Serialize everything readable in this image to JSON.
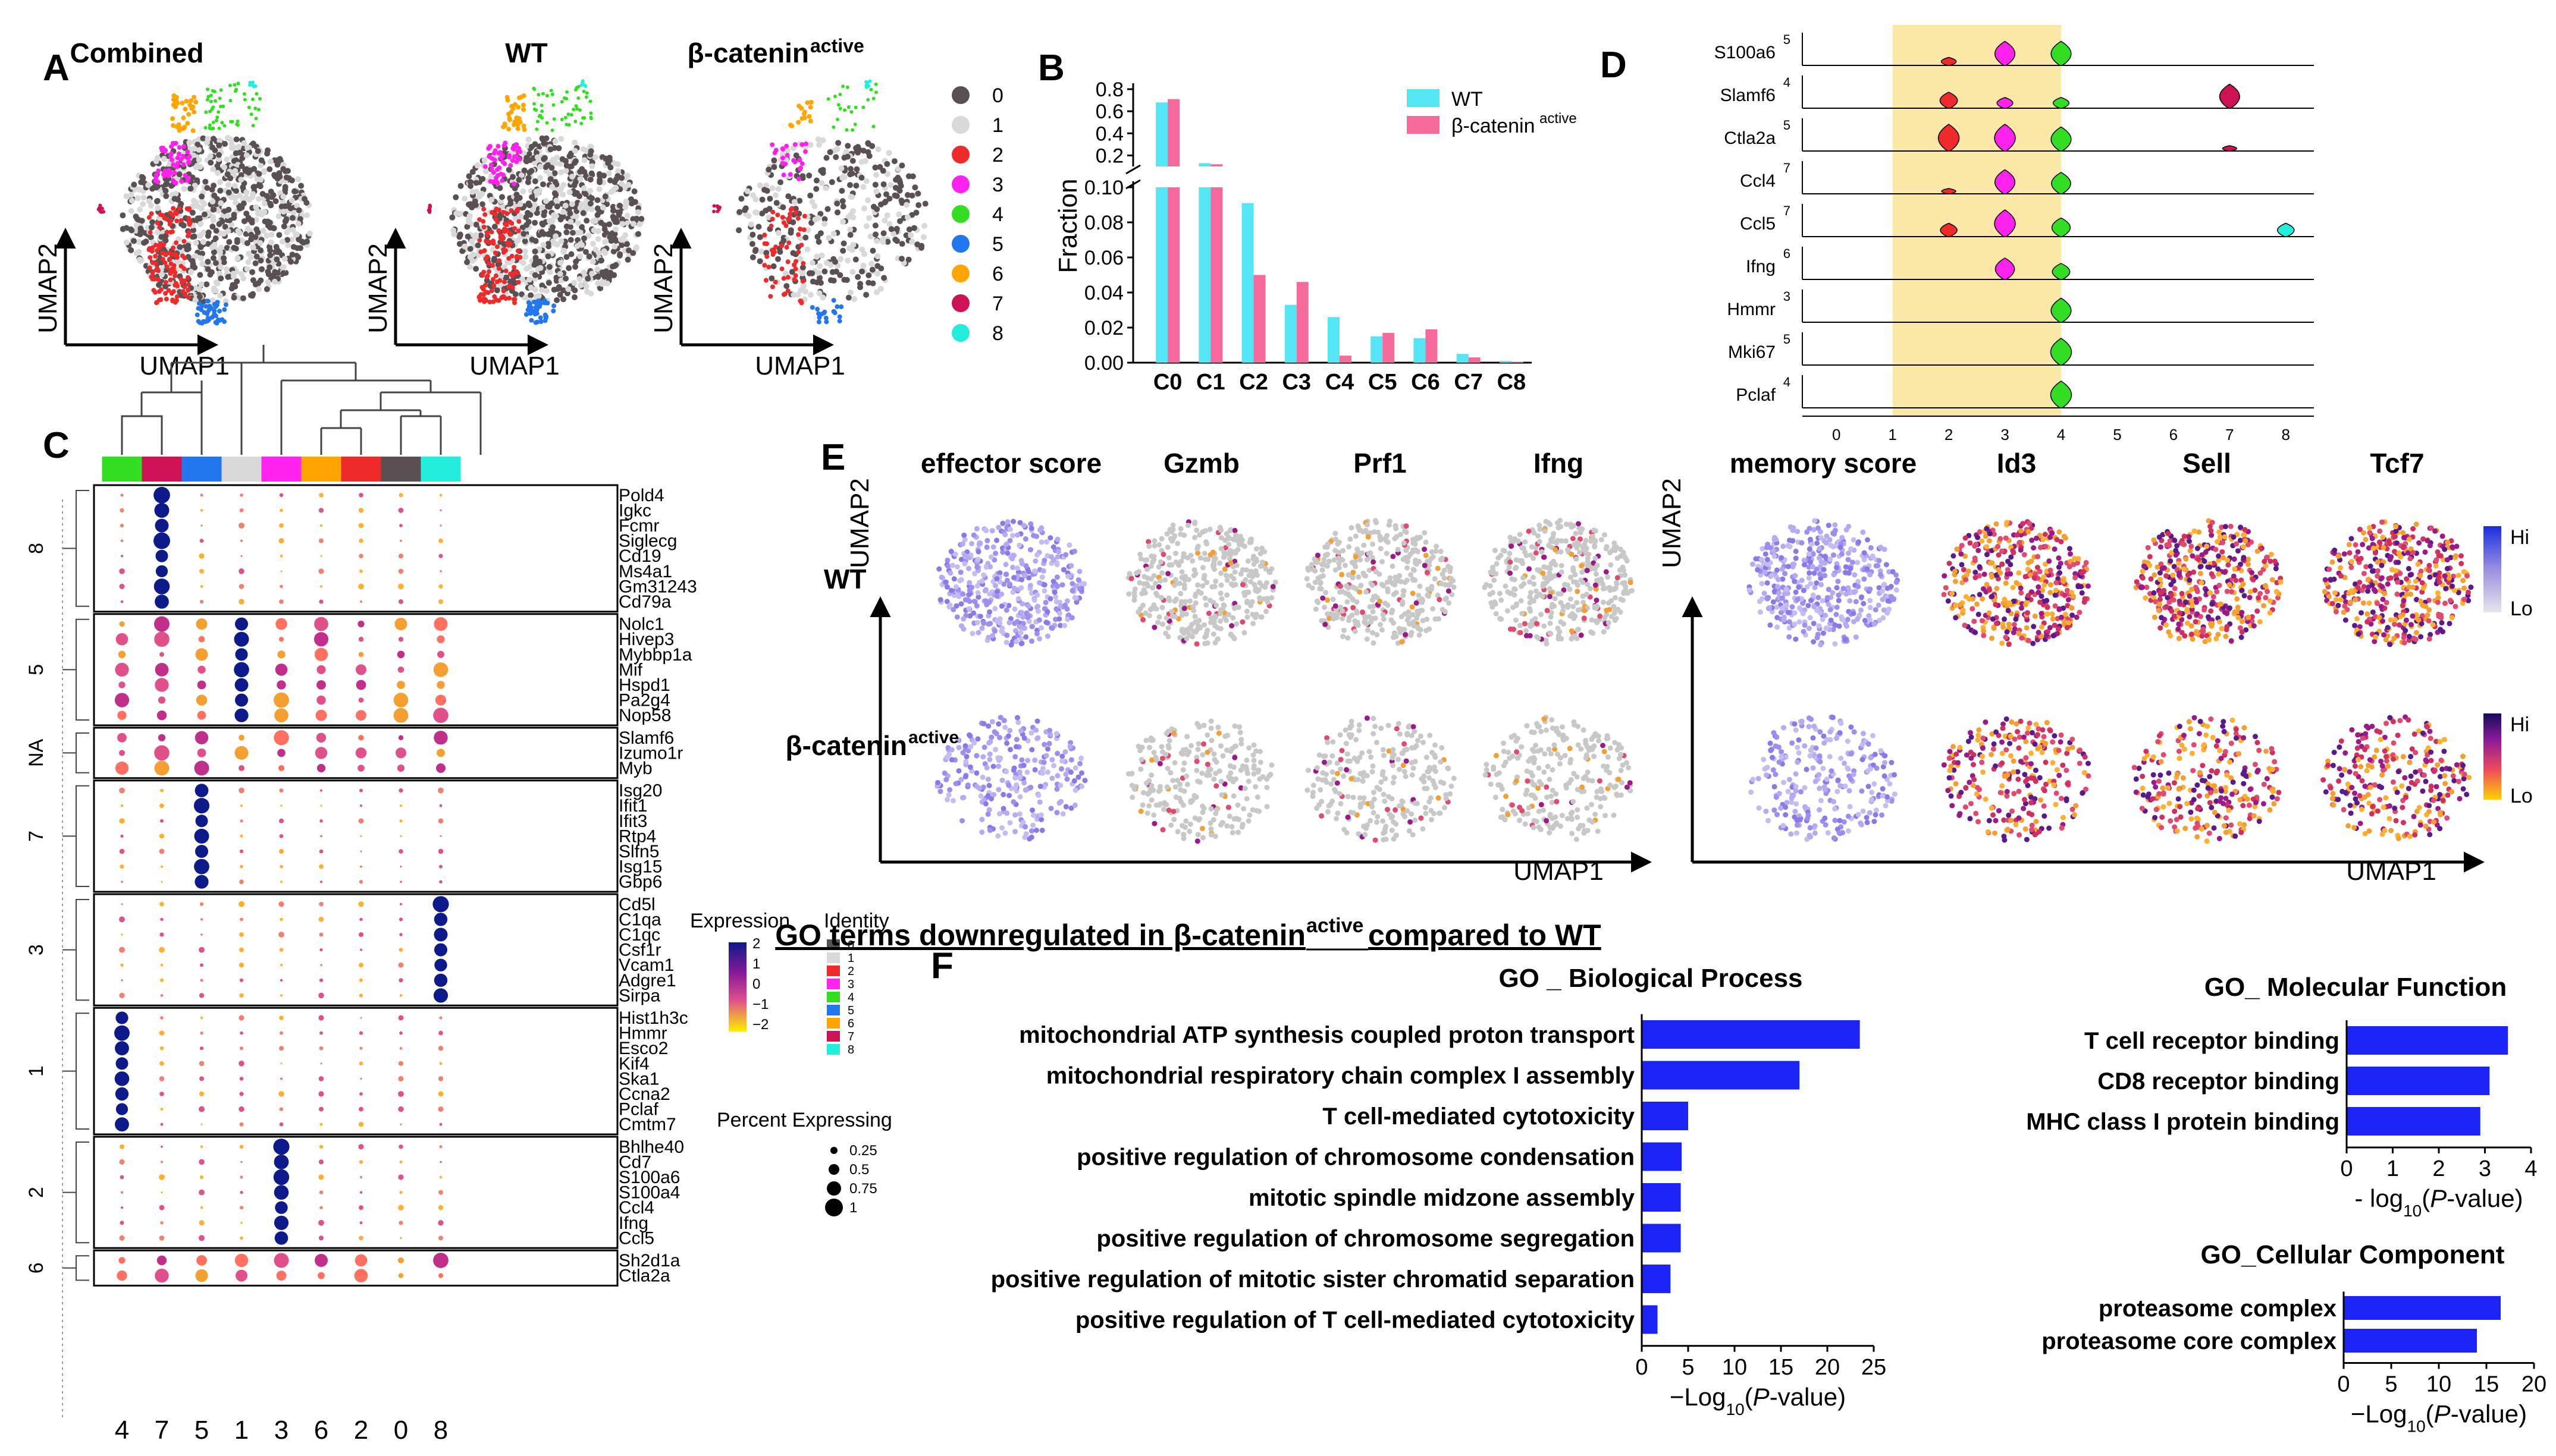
{
  "panelA": {
    "letter": "A",
    "titles": [
      "Combined",
      "WT",
      "β-catenin",
      "active"
    ],
    "xlabel": "UMAP1",
    "ylabel": "UMAP2",
    "legend": [
      "0",
      "1",
      "2",
      "3",
      "4",
      "5",
      "6",
      "7",
      "8"
    ],
    "cluster_colors": [
      "#5a4f52",
      "#d9d9d9",
      "#ee2a2a",
      "#ff22ee",
      "#33dd22",
      "#2277ee",
      "#ffa500",
      "#cc1155",
      "#22eedd"
    ]
  },
  "chart_data": [
    {
      "type": "bar",
      "title": "B",
      "categories": [
        "C0",
        "C1",
        "C2",
        "C3",
        "C4",
        "C5",
        "C6",
        "C7",
        "C8"
      ],
      "series": [
        {
          "name": "WT",
          "color": "#55e6f5",
          "values": [
            0.68,
            0.13,
            0.091,
            0.033,
            0.026,
            0.015,
            0.014,
            0.005,
            0.001
          ]
        },
        {
          "name": "β-catenin active",
          "color": "#f56a9a",
          "values": [
            0.71,
            0.12,
            0.05,
            0.046,
            0.004,
            0.017,
            0.019,
            0.003,
            0.0005
          ]
        }
      ],
      "ylabel": "Fraction",
      "lower_ticks": [
        "0.00",
        "0.02",
        "0.04",
        "0.06",
        "0.08",
        "0.10"
      ],
      "upper_ticks": [
        "0.2",
        "0.4",
        "0.6",
        "0.8"
      ],
      "legend": [
        "WT",
        "β-catenin",
        "active"
      ]
    },
    {
      "type": "bar",
      "title": "GO _ Biological Process",
      "categories": [
        "mitochondrial ATP synthesis coupled proton transport",
        "mitochondrial respiratory chain complex I assembly",
        "T cell-mediated cytotoxicity",
        "positive regulation of chromosome condensation",
        "mitotic spindle midzone assembly",
        "positive regulation of chromosome segregation",
        "positive regulation of mitotic sister chromatid separation",
        "positive regulation of T cell-mediated cytotoxicity"
      ],
      "values": [
        23.5,
        17,
        5,
        4.3,
        4.2,
        4.2,
        3.1,
        1.7
      ],
      "xlim": [
        0,
        25
      ],
      "ticks": [
        "0",
        "5",
        "10",
        "15",
        "20",
        "25"
      ],
      "xlabel": [
        "−Log",
        "10",
        "(",
        "P",
        "-value)"
      ]
    },
    {
      "type": "bar",
      "title": "GO_ Molecular Function",
      "categories": [
        "T cell receptor binding",
        "CD8 receptor binding",
        "MHC class I protein binding"
      ],
      "values": [
        3.5,
        3.1,
        2.9
      ],
      "xlim": [
        0,
        4
      ],
      "ticks": [
        "0",
        "1",
        "2",
        "3",
        "4"
      ],
      "xlabel": [
        "- log",
        "10",
        "(",
        "P",
        "-value)"
      ]
    },
    {
      "type": "bar",
      "title": "GO_Cellular Component",
      "categories": [
        "proteasome complex",
        "proteasome core complex"
      ],
      "values": [
        16.5,
        14
      ],
      "xlim": [
        0,
        20
      ],
      "ticks": [
        "0",
        "5",
        "10",
        "15",
        "20"
      ],
      "xlabel": [
        "−Log",
        "10",
        "(",
        "P",
        "-value)"
      ]
    }
  ],
  "panelB": {
    "letter": "B"
  },
  "panelC": {
    "letter": "C",
    "cluster_order": [
      "4",
      "7",
      "5",
      "1",
      "3",
      "6",
      "2",
      "0",
      "8"
    ],
    "groups": [
      {
        "name": "8",
        "genes": [
          "Pold4",
          "Igkc",
          "Fcmr",
          "Siglecg",
          "Cd19",
          "Ms4a1",
          "Gm31243",
          "Cd79a"
        ]
      },
      {
        "name": "5",
        "genes": [
          "Nolc1",
          "Hivep3",
          "Mybbp1a",
          "Mif",
          "Hspd1",
          "Pa2g4",
          "Nop58"
        ]
      },
      {
        "name": "NA",
        "genes": [
          "Slamf6",
          "Izumo1r",
          "Myb"
        ]
      },
      {
        "name": "7",
        "genes": [
          "Isg20",
          "Ifit1",
          "Ifit3",
          "Rtp4",
          "Slfn5",
          "Isg15",
          "Gbp6"
        ]
      },
      {
        "name": "3",
        "genes": [
          "Cd5l",
          "C1qa",
          "C1qc",
          "Csf1r",
          "Vcam1",
          "Adgre1",
          "Sirpa"
        ]
      },
      {
        "name": "1",
        "genes": [
          "Hist1h3c",
          "Hmmr",
          "Esco2",
          "Kif4",
          "Ska1",
          "Ccna2",
          "Pclaf",
          "Cmtm7"
        ]
      },
      {
        "name": "2",
        "genes": [
          "Bhlhe40",
          "Cd7",
          "S100a6",
          "S100a4",
          "Ccl4",
          "Ifng",
          "Ccl5"
        ]
      },
      {
        "name": "6",
        "genes": [
          "Sh2d1a",
          "Ctla2a"
        ]
      }
    ],
    "legend_expression": "Expression",
    "expr_ticks": [
      "2",
      "1",
      "0",
      "−1",
      "−2"
    ],
    "legend_identity": "Identity",
    "identity_items": [
      "0",
      "1",
      "2",
      "3",
      "4",
      "5",
      "6",
      "7",
      "8"
    ],
    "legend_percent": "Percent Expressing",
    "percent_items": [
      "0.25",
      "0.5",
      "0.75",
      "1"
    ]
  },
  "panelD": {
    "letter": "D",
    "genes": [
      {
        "name": "S100a6",
        "max": "5"
      },
      {
        "name": "Slamf6",
        "max": "4"
      },
      {
        "name": "Ctla2a",
        "max": "5"
      },
      {
        "name": "Ccl4",
        "max": "7"
      },
      {
        "name": "Ccl5",
        "max": "7"
      },
      {
        "name": "Ifng",
        "max": "6"
      },
      {
        "name": "Hmmr",
        "max": "3"
      },
      {
        "name": "Mki67",
        "max": "5"
      },
      {
        "name": "Pclaf",
        "max": "4"
      }
    ],
    "clusters": [
      "0",
      "1",
      "2",
      "3",
      "4",
      "5",
      "6",
      "7",
      "8"
    ]
  },
  "panelE": {
    "letter": "E",
    "titles": [
      "effector score",
      "Gzmb",
      "Prf1",
      "Ifng",
      "memory score",
      "Id3",
      "Sell",
      "Tcf7"
    ],
    "row_labels": [
      "WT",
      "β-catenin",
      "active"
    ],
    "xlabel": "UMAP1",
    "ylabel": "UMAP2",
    "hi": "Hi",
    "lo": "Lo"
  },
  "panelF": {
    "letter": "F",
    "heading": [
      "GO terms downregulated in β-catenin",
      "active",
      " compared to WT"
    ]
  }
}
